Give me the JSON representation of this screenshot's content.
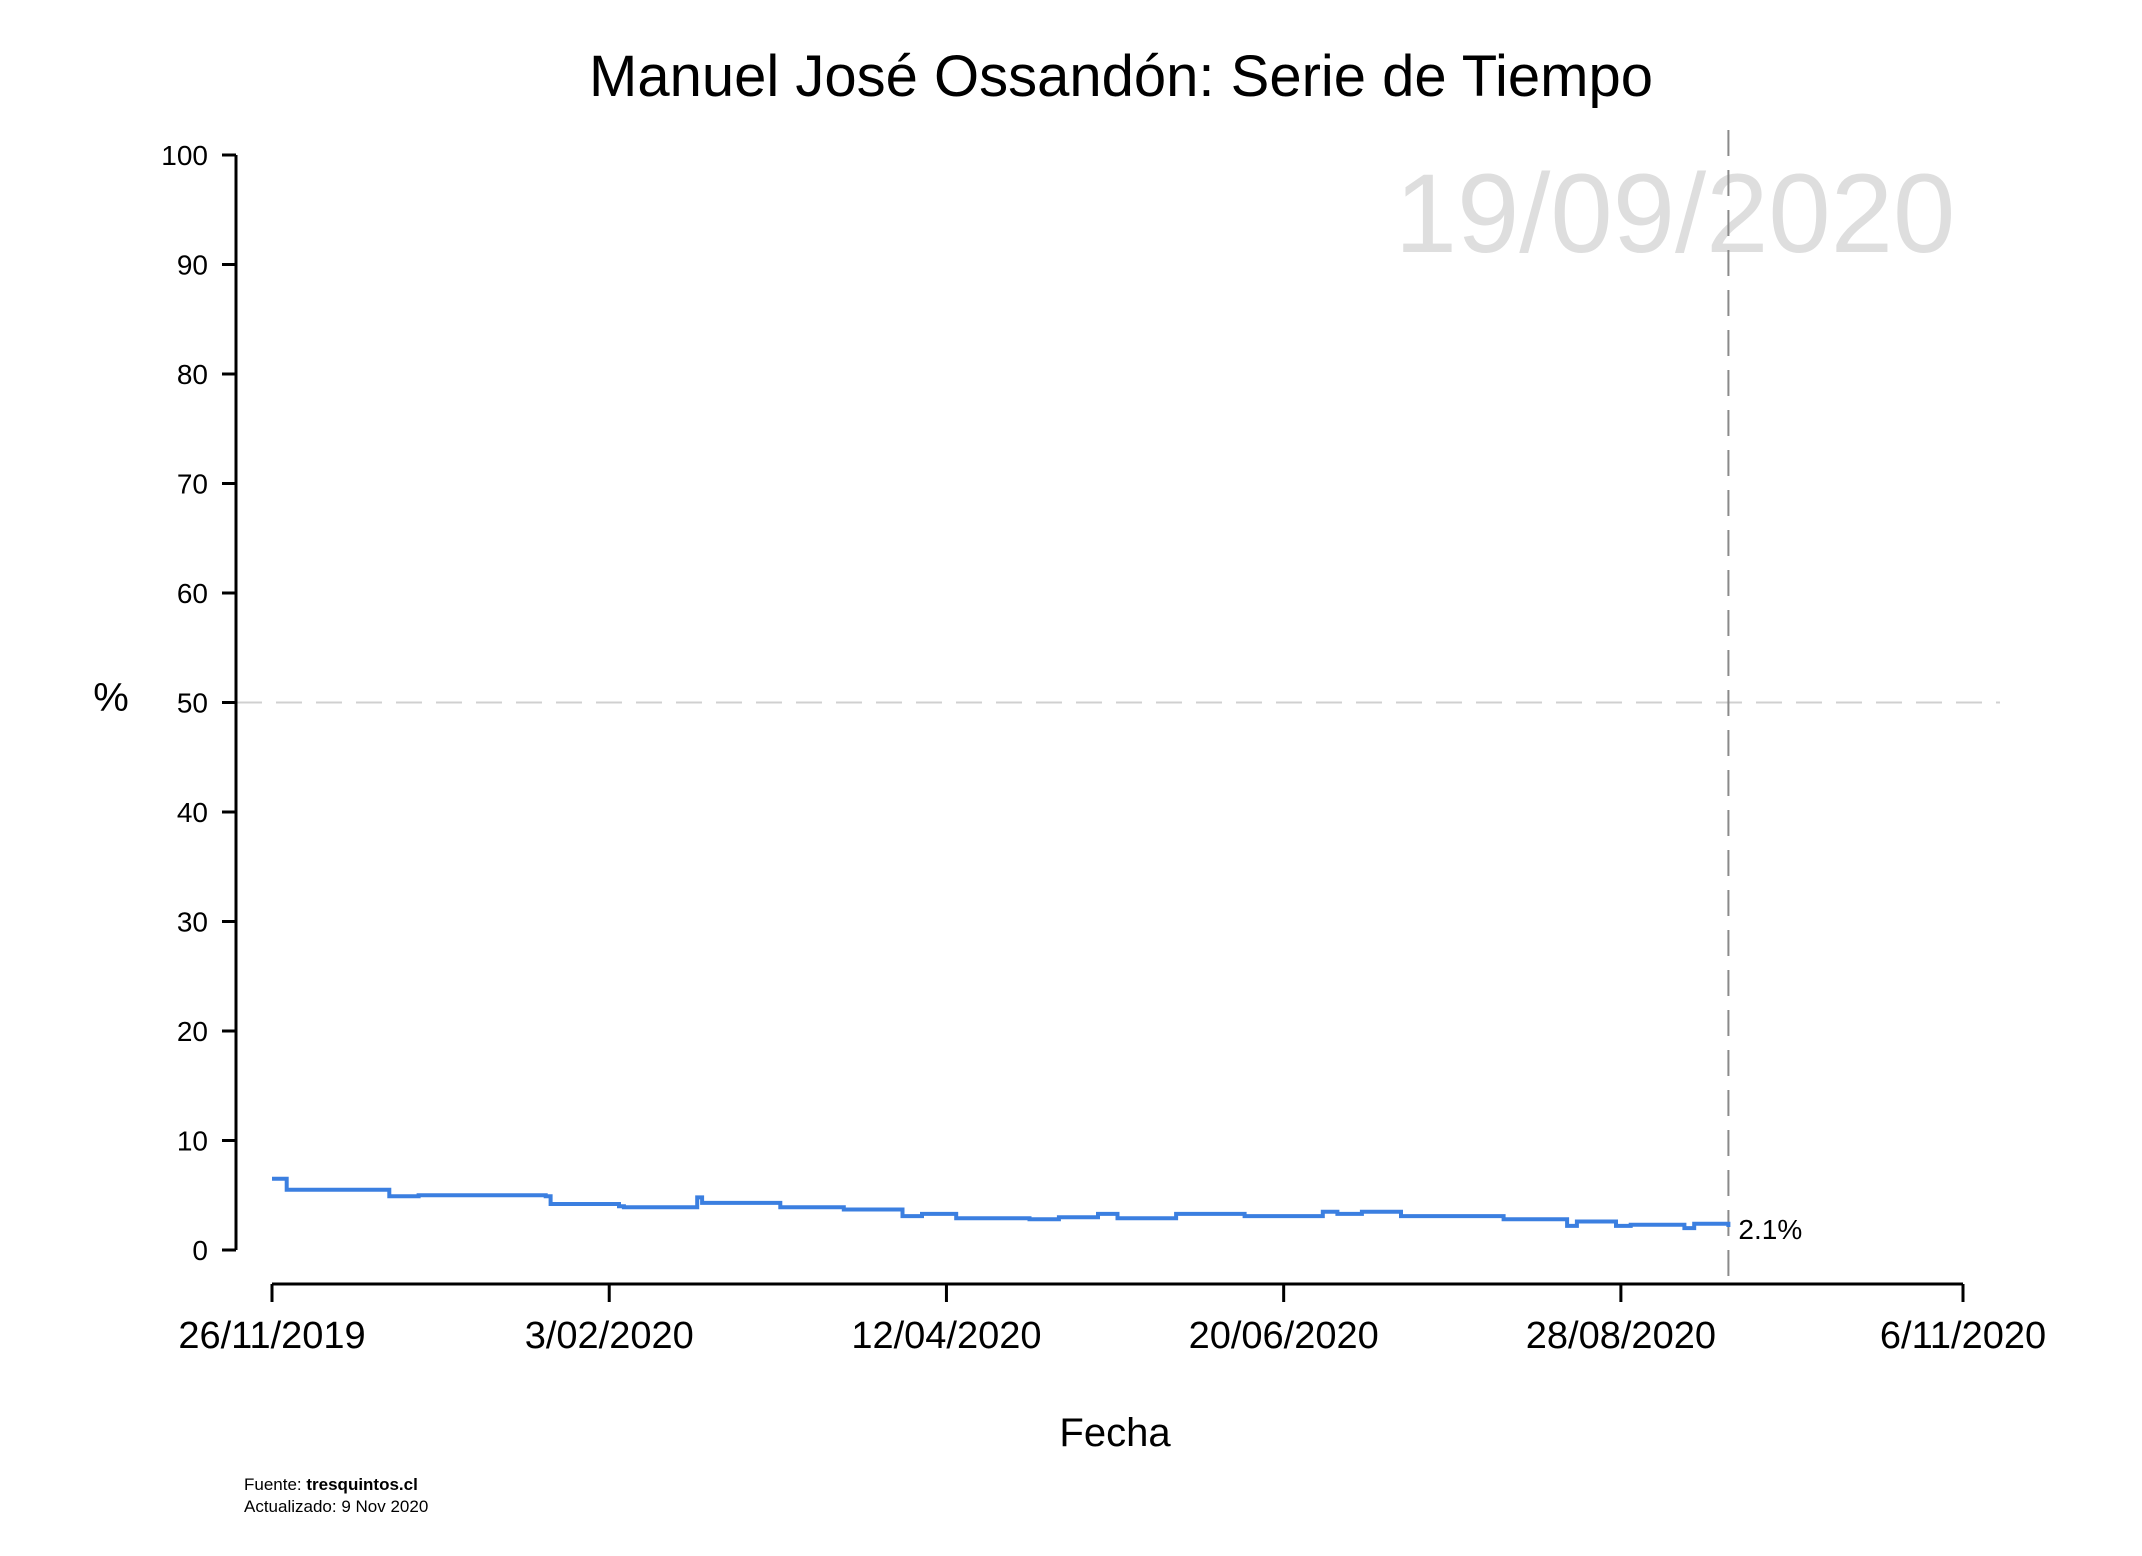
{
  "chart_data": {
    "type": "line",
    "title": "Manuel José Ossandón: Serie de Tiempo",
    "xlabel": "Fecha",
    "ylabel": "%",
    "ylim": [
      0,
      100
    ],
    "yticks": [
      0,
      10,
      20,
      30,
      40,
      50,
      60,
      70,
      80,
      90,
      100
    ],
    "x_range": [
      "2019-11-26",
      "2020-11-06"
    ],
    "xtick_dates": [
      "2019-11-26",
      "2020-02-03",
      "2020-04-12",
      "2020-06-20",
      "2020-08-28",
      "2020-11-06"
    ],
    "xtick_labels": [
      "26/11/2019",
      "3/02/2020",
      "12/04/2020",
      "20/06/2020",
      "28/08/2020",
      "6/11/2020"
    ],
    "reference_line_y": 50,
    "marker_date": "2020-09-19",
    "marker_label": "19/09/2020",
    "end_label": "2.1%",
    "line_style": "step",
    "series_color": "#3b7fe0",
    "grid": false,
    "x": [
      "2019-11-26",
      "2019-11-29",
      "2019-12-20",
      "2019-12-26",
      "2020-01-21",
      "2020-01-22",
      "2020-02-05",
      "2020-02-06",
      "2020-02-08",
      "2020-02-21",
      "2020-02-22",
      "2020-02-25",
      "2020-03-09",
      "2020-03-22",
      "2020-04-03",
      "2020-04-07",
      "2020-04-11",
      "2020-04-14",
      "2020-04-29",
      "2020-05-05",
      "2020-05-13",
      "2020-05-16",
      "2020-05-17",
      "2020-05-29",
      "2020-05-30",
      "2020-06-12",
      "2020-06-13",
      "2020-06-14",
      "2020-06-28",
      "2020-07-01",
      "2020-07-02",
      "2020-07-05",
      "2020-07-06",
      "2020-07-14",
      "2020-07-15",
      "2020-07-30",
      "2020-08-04",
      "2020-08-17",
      "2020-08-19",
      "2020-08-27",
      "2020-08-30",
      "2020-08-31",
      "2020-09-10",
      "2020-09-12",
      "2020-09-19"
    ],
    "values": [
      6.5,
      5.5,
      4.9,
      5.0,
      4.9,
      4.2,
      4.0,
      3.9,
      3.9,
      4.8,
      4.3,
      4.3,
      3.9,
      3.7,
      3.1,
      3.3,
      3.3,
      2.9,
      2.8,
      3.0,
      3.3,
      3.3,
      2.9,
      3.3,
      3.3,
      3.1,
      3.1,
      3.1,
      3.5,
      3.3,
      3.3,
      3.3,
      3.5,
      3.1,
      3.1,
      3.1,
      2.8,
      2.2,
      2.6,
      2.2,
      2.3,
      2.3,
      2.0,
      2.4,
      2.1
    ]
  },
  "footer": {
    "source_prefix": "Fuente: ",
    "source_site": "tresquintos.cl",
    "updated": "Actualizado: 9 Nov 2020"
  }
}
